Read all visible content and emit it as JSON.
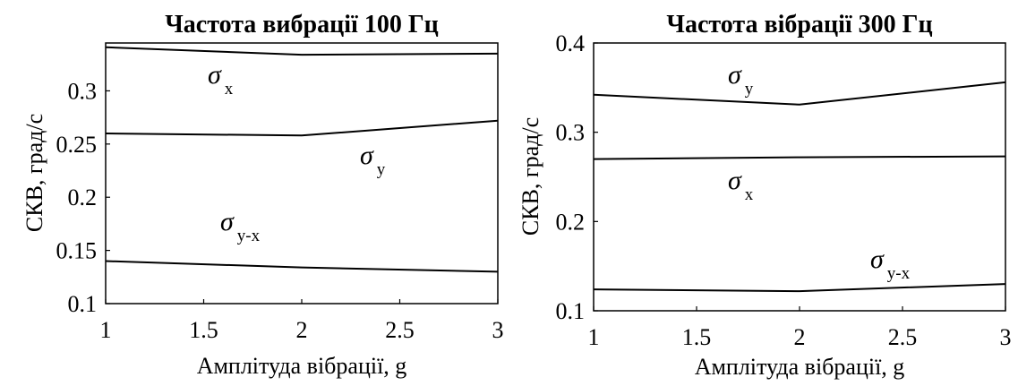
{
  "chart_data": [
    {
      "type": "line",
      "title": "Частота вибрації 100 Гц",
      "xlabel": "Амплітуда вібрації, g",
      "ylabel": "СКВ, град/с",
      "xlim": [
        1,
        3
      ],
      "ylim": [
        0.1,
        0.345
      ],
      "xticks": [
        "1",
        "1.5",
        "2",
        "2.5",
        "3"
      ],
      "yticks": [
        "0.1",
        "0.15",
        "0.2",
        "0.25",
        "0.3"
      ],
      "grid": false,
      "legend": "none",
      "series": [
        {
          "name": "σx",
          "symbol": "σ",
          "sub": "x",
          "x": [
            1,
            2,
            3
          ],
          "y": [
            0.341,
            0.334,
            0.335
          ]
        },
        {
          "name": "σy",
          "symbol": "σ",
          "sub": "y",
          "x": [
            1,
            2,
            3
          ],
          "y": [
            0.26,
            0.258,
            0.272
          ]
        },
        {
          "name": "σy-x",
          "symbol": "σ",
          "sub": "y-x",
          "x": [
            1,
            2,
            3
          ],
          "y": [
            0.14,
            0.134,
            0.13
          ]
        }
      ]
    },
    {
      "type": "line",
      "title": "Частота вібрації 300 Гц",
      "xlabel": "Амплітуда вібрації, g",
      "ylabel": "СКВ, град/с",
      "xlim": [
        1,
        3
      ],
      "ylim": [
        0.1,
        0.4
      ],
      "xticks": [
        "1",
        "1.5",
        "2",
        "2.5",
        "3"
      ],
      "yticks": [
        "0.1",
        "0.2",
        "0.3",
        "0.4"
      ],
      "grid": false,
      "legend": "none",
      "series": [
        {
          "name": "σy",
          "symbol": "σ",
          "sub": "y",
          "x": [
            1,
            2,
            3
          ],
          "y": [
            0.342,
            0.331,
            0.356
          ]
        },
        {
          "name": "σx",
          "symbol": "σ",
          "sub": "x",
          "x": [
            1,
            2,
            3
          ],
          "y": [
            0.27,
            0.272,
            0.273
          ]
        },
        {
          "name": "σy-x",
          "symbol": "σ",
          "sub": "y-x",
          "x": [
            1,
            2,
            3
          ],
          "y": [
            0.124,
            0.122,
            0.13
          ]
        }
      ]
    }
  ]
}
